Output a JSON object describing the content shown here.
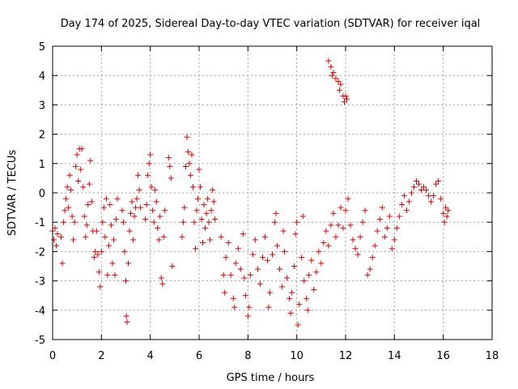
{
  "chart_data": {
    "type": "scatter",
    "title": "Day 174 of 2025, Sidereal Day-to-day VTEC variation (SDTVAR) for receiver iqal",
    "xlabel": "GPS time / hours",
    "ylabel": "SDTVAR / TECUs",
    "xlim": [
      0,
      18
    ],
    "ylim": [
      -5,
      5
    ],
    "x_ticks": [
      "0",
      "2",
      "4",
      "6",
      "8",
      "10",
      "12",
      "14",
      "16",
      "18"
    ],
    "y_ticks": [
      "-5",
      "-4",
      "-3",
      "-2",
      "-1",
      "0",
      "1",
      "2",
      "3",
      "4",
      "5"
    ],
    "grid": true,
    "marker": "+",
    "series_color": "#e00000",
    "series": [
      {
        "name": "SDTVAR",
        "points": [
          [
            0.0,
            -1.3
          ],
          [
            0.05,
            -1.6
          ],
          [
            0.1,
            -1.2
          ],
          [
            0.15,
            -1.8
          ],
          [
            0.2,
            -1.4
          ],
          [
            0.35,
            -1.5
          ],
          [
            0.4,
            -2.4
          ],
          [
            0.45,
            -1.0
          ],
          [
            0.5,
            -0.6
          ],
          [
            0.55,
            -0.2
          ],
          [
            0.6,
            0.2
          ],
          [
            0.65,
            -0.5
          ],
          [
            0.7,
            0.6
          ],
          [
            0.75,
            0.1
          ],
          [
            0.8,
            -0.8
          ],
          [
            0.85,
            -1.6
          ],
          [
            0.9,
            -1.0
          ],
          [
            0.95,
            0.9
          ],
          [
            1.0,
            1.3
          ],
          [
            1.05,
            0.4
          ],
          [
            1.1,
            1.5
          ],
          [
            1.15,
            0.8
          ],
          [
            1.2,
            1.5
          ],
          [
            1.25,
            0.2
          ],
          [
            1.3,
            -0.8
          ],
          [
            1.35,
            -1.5
          ],
          [
            1.4,
            -1.1
          ],
          [
            1.45,
            -0.4
          ],
          [
            1.5,
            0.3
          ],
          [
            1.55,
            1.1
          ],
          [
            1.6,
            -0.3
          ],
          [
            1.65,
            -1.3
          ],
          [
            1.7,
            -2.2
          ],
          [
            1.75,
            -2.0
          ],
          [
            1.8,
            -1.3
          ],
          [
            1.85,
            -2.1
          ],
          [
            1.9,
            -2.7
          ],
          [
            1.95,
            -3.2
          ],
          [
            2.0,
            -2.0
          ],
          [
            2.05,
            -1.0
          ],
          [
            2.1,
            -0.5
          ],
          [
            2.15,
            -1.5
          ],
          [
            2.2,
            -0.2
          ],
          [
            2.25,
            -2.8
          ],
          [
            2.3,
            -1.8
          ],
          [
            2.35,
            -0.4
          ],
          [
            2.4,
            -1.1
          ],
          [
            2.45,
            -2.4
          ],
          [
            2.5,
            -1.6
          ],
          [
            2.55,
            -2.8
          ],
          [
            2.6,
            -0.9
          ],
          [
            2.65,
            -0.2
          ],
          [
            2.85,
            -0.6
          ],
          [
            2.9,
            -1.0
          ],
          [
            2.95,
            -2.0
          ],
          [
            3.0,
            -3.0
          ],
          [
            3.02,
            -4.2
          ],
          [
            3.05,
            -4.4
          ],
          [
            3.1,
            -2.4
          ],
          [
            3.15,
            -1.3
          ],
          [
            3.2,
            -0.7
          ],
          [
            3.25,
            -0.3
          ],
          [
            3.3,
            -1.6
          ],
          [
            3.35,
            -0.8
          ],
          [
            3.4,
            -0.5
          ],
          [
            3.45,
            -0.2
          ],
          [
            3.5,
            0.6
          ],
          [
            3.55,
            0.1
          ],
          [
            3.6,
            -0.5
          ],
          [
            3.8,
            -0.9
          ],
          [
            3.85,
            -0.4
          ],
          [
            3.9,
            0.6
          ],
          [
            3.95,
            1.0
          ],
          [
            4.0,
            1.3
          ],
          [
            4.05,
            0.2
          ],
          [
            4.1,
            -0.6
          ],
          [
            4.15,
            -1.0
          ],
          [
            4.2,
            0.1
          ],
          [
            4.25,
            -0.3
          ],
          [
            4.3,
            -1.2
          ],
          [
            4.35,
            -1.6
          ],
          [
            4.4,
            -0.8
          ],
          [
            4.45,
            -2.9
          ],
          [
            4.5,
            -3.1
          ],
          [
            4.55,
            -1.5
          ],
          [
            4.6,
            -0.6
          ],
          [
            4.75,
            1.2
          ],
          [
            4.8,
            0.9
          ],
          [
            4.85,
            0.5
          ],
          [
            4.9,
            -2.5
          ],
          [
            5.3,
            -1.5
          ],
          [
            5.35,
            -1.0
          ],
          [
            5.4,
            -0.5
          ],
          [
            5.45,
            0.9
          ],
          [
            5.5,
            1.9
          ],
          [
            5.55,
            1.4
          ],
          [
            5.6,
            1.0
          ],
          [
            5.65,
            0.6
          ],
          [
            5.7,
            1.3
          ],
          [
            5.75,
            0.2
          ],
          [
            5.8,
            -1.0
          ],
          [
            5.85,
            -1.9
          ],
          [
            5.9,
            -0.6
          ],
          [
            5.95,
            -0.2
          ],
          [
            6.0,
            0.8
          ],
          [
            6.05,
            0.2
          ],
          [
            6.1,
            -0.9
          ],
          [
            6.15,
            -1.7
          ],
          [
            6.2,
            -0.4
          ],
          [
            6.25,
            -1.2
          ],
          [
            6.3,
            -0.7
          ],
          [
            6.35,
            -0.2
          ],
          [
            6.4,
            -1.0
          ],
          [
            6.45,
            -1.6
          ],
          [
            6.5,
            -0.6
          ],
          [
            6.55,
            0.1
          ],
          [
            6.6,
            -0.3
          ],
          [
            6.65,
            -0.9
          ],
          [
            6.9,
            -1.5
          ],
          [
            7.0,
            -2.8
          ],
          [
            7.05,
            -3.4
          ],
          [
            7.1,
            -2.2
          ],
          [
            7.2,
            -1.7
          ],
          [
            7.3,
            -2.8
          ],
          [
            7.4,
            -3.6
          ],
          [
            7.45,
            -3.9
          ],
          [
            7.5,
            -2.4
          ],
          [
            7.6,
            -1.9
          ],
          [
            7.7,
            -2.6
          ],
          [
            7.8,
            -1.4
          ],
          [
            7.85,
            -2.9
          ],
          [
            7.9,
            -3.5
          ],
          [
            8.0,
            -4.2
          ],
          [
            8.05,
            -3.9
          ],
          [
            8.1,
            -2.8
          ],
          [
            8.2,
            -2.1
          ],
          [
            8.3,
            -1.6
          ],
          [
            8.4,
            -2.6
          ],
          [
            8.5,
            -3.1
          ],
          [
            8.6,
            -2.2
          ],
          [
            8.7,
            -1.5
          ],
          [
            8.8,
            -2.3
          ],
          [
            8.85,
            -3.9
          ],
          [
            8.9,
            -3.4
          ],
          [
            9.0,
            -2.1
          ],
          [
            9.1,
            -1.0
          ],
          [
            9.15,
            -0.7
          ],
          [
            9.2,
            -1.8
          ],
          [
            9.3,
            -2.6
          ],
          [
            9.4,
            -3.2
          ],
          [
            9.45,
            -1.3
          ],
          [
            9.5,
            -2.0
          ],
          [
            9.6,
            -2.9
          ],
          [
            9.7,
            -3.6
          ],
          [
            9.75,
            -4.1
          ],
          [
            9.8,
            -3.4
          ],
          [
            9.9,
            -2.5
          ],
          [
            9.95,
            -1.4
          ],
          [
            10.0,
            -1.0
          ],
          [
            10.05,
            -4.5
          ],
          [
            10.1,
            -3.8
          ],
          [
            10.2,
            -2.2
          ],
          [
            10.25,
            -0.8
          ],
          [
            10.3,
            -3.0
          ],
          [
            10.4,
            -3.6
          ],
          [
            10.45,
            -4.0
          ],
          [
            10.5,
            -2.8
          ],
          [
            10.6,
            -2.3
          ],
          [
            10.7,
            -3.3
          ],
          [
            10.8,
            -2.7
          ],
          [
            10.9,
            -2.0
          ],
          [
            11.0,
            -2.4
          ],
          [
            11.1,
            -1.7
          ],
          [
            11.2,
            -1.3
          ],
          [
            11.3,
            -1.8
          ],
          [
            11.4,
            -1.1
          ],
          [
            11.5,
            -0.7
          ],
          [
            11.6,
            -1.5
          ],
          [
            11.7,
            -1.1
          ],
          [
            11.8,
            -0.5
          ],
          [
            11.9,
            -1.2
          ],
          [
            12.0,
            -0.6
          ],
          [
            12.1,
            -0.2
          ],
          [
            11.3,
            4.5
          ],
          [
            11.4,
            4.3
          ],
          [
            11.45,
            4.0
          ],
          [
            11.5,
            4.1
          ],
          [
            11.6,
            3.9
          ],
          [
            11.7,
            3.8
          ],
          [
            11.75,
            3.5
          ],
          [
            11.8,
            3.7
          ],
          [
            11.9,
            3.3
          ],
          [
            11.95,
            3.1
          ],
          [
            12.0,
            3.3
          ],
          [
            12.05,
            3.2
          ],
          [
            12.2,
            -1.1
          ],
          [
            12.3,
            -1.6
          ],
          [
            12.4,
            -1.9
          ],
          [
            12.5,
            -2.1
          ],
          [
            12.6,
            -1.5
          ],
          [
            12.7,
            -1.0
          ],
          [
            12.8,
            -0.6
          ],
          [
            12.9,
            -2.8
          ],
          [
            13.0,
            -2.6
          ],
          [
            13.1,
            -2.2
          ],
          [
            13.2,
            -1.8
          ],
          [
            13.3,
            -1.3
          ],
          [
            13.4,
            -0.9
          ],
          [
            13.5,
            -0.5
          ],
          [
            13.6,
            -1.5
          ],
          [
            13.7,
            -1.2
          ],
          [
            13.8,
            -0.8
          ],
          [
            13.9,
            -1.9
          ],
          [
            14.0,
            -1.6
          ],
          [
            14.1,
            -1.2
          ],
          [
            14.2,
            -0.8
          ],
          [
            14.3,
            -0.4
          ],
          [
            14.4,
            -0.1
          ],
          [
            14.5,
            -0.6
          ],
          [
            14.6,
            -0.3
          ],
          [
            14.7,
            0.0
          ],
          [
            14.8,
            0.2
          ],
          [
            14.9,
            0.4
          ],
          [
            15.0,
            0.3
          ],
          [
            15.1,
            0.1
          ],
          [
            15.2,
            0.2
          ],
          [
            15.3,
            0.1
          ],
          [
            15.4,
            -0.1
          ],
          [
            15.5,
            -0.3
          ],
          [
            15.6,
            -0.1
          ],
          [
            15.7,
            0.3
          ],
          [
            15.8,
            0.4
          ],
          [
            15.9,
            -0.2
          ],
          [
            16.0,
            -0.7
          ],
          [
            16.05,
            -1.0
          ],
          [
            16.1,
            -0.5
          ],
          [
            16.15,
            -0.8
          ],
          [
            16.2,
            -0.6
          ]
        ]
      }
    ]
  }
}
